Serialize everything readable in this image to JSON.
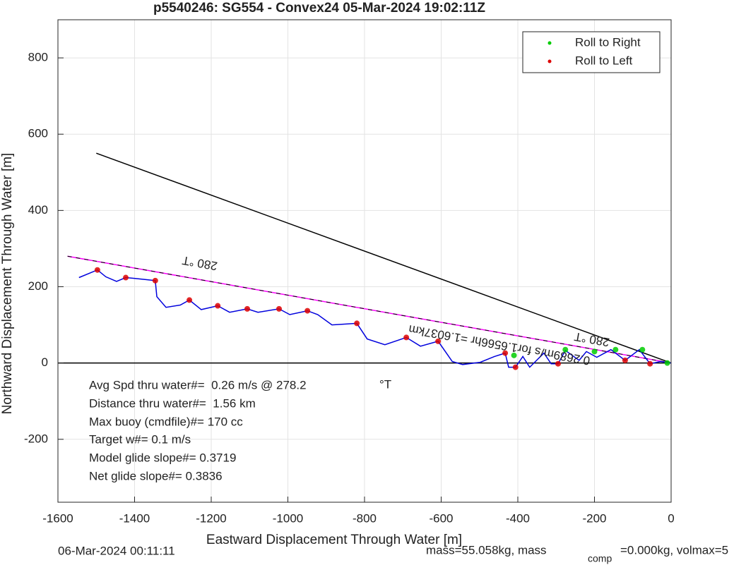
{
  "chart_data": {
    "type": "line",
    "title": "p5540246: SG554 - Convex24 05-Mar-2024 19:02:11Z",
    "xlabel": "Eastward Displacement Through Water [m]",
    "ylabel": "Northward Displacement Through Water [m]",
    "xlim": [
      -1600,
      0
    ],
    "ylim": [
      -365,
      900
    ],
    "xticks": [
      -1600,
      -1400,
      -1200,
      -1000,
      -800,
      -600,
      -400,
      -200,
      0
    ],
    "yticks": [
      -200,
      0,
      200,
      400,
      600,
      800
    ],
    "grid": true,
    "legend": "upper right",
    "series": [
      {
        "name": "Roll to Right",
        "color": "#00cc00",
        "x": [
          -410,
          -276,
          -200,
          -145,
          -75,
          -10
        ],
        "values": [
          20,
          35,
          30,
          35,
          35,
          0
        ]
      },
      {
        "name": "Roll to Left",
        "color": "#dd0000",
        "x": [
          -1497,
          -1423,
          -1346,
          -1257,
          -1183,
          -1106,
          -1023,
          -949,
          -820,
          -691,
          -608,
          -433,
          -406,
          -295,
          -120,
          -55
        ],
        "values": [
          244,
          224,
          216,
          165,
          150,
          142,
          142,
          137,
          104,
          67,
          57,
          26,
          -11,
          -2,
          7,
          -2
        ]
      }
    ],
    "lines": [
      {
        "color": "#000000",
        "x": [
          -1600,
          0
        ],
        "values": [
          0,
          0
        ]
      },
      {
        "color": "#000000",
        "x": [
          -1500,
          0
        ],
        "values": [
          550,
          0
        ]
      },
      {
        "color": "#ff00ff",
        "x": [
          -1575,
          0
        ],
        "values": [
          280,
          0
        ]
      },
      {
        "color": "#0000dd",
        "x": [
          -1545,
          -1497,
          -1475,
          -1447,
          -1423,
          -1401,
          -1364,
          -1346,
          -1342,
          -1318,
          -1281,
          -1257,
          -1226,
          -1183,
          -1152,
          -1106,
          -1078,
          -1023,
          -995,
          -949,
          -922,
          -885,
          -820,
          -793,
          -747,
          -691,
          -654,
          -608,
          -571,
          -544,
          -498,
          -461,
          -433,
          -424,
          -406,
          -387,
          -369,
          -332,
          -313,
          -295,
          -276,
          -240,
          -221,
          -194,
          -157,
          -120,
          -83,
          -55,
          -28,
          0
        ],
        "values": [
          224,
          244,
          226,
          214,
          224,
          222,
          218,
          216,
          174,
          146,
          152,
          165,
          140,
          150,
          133,
          142,
          133,
          142,
          127,
          137,
          127,
          100,
          104,
          63,
          48,
          67,
          44,
          57,
          4,
          -4,
          2,
          17,
          26,
          -11,
          -11,
          17,
          -11,
          26,
          -2,
          -2,
          33,
          7,
          30,
          15,
          35,
          7,
          35,
          -2,
          4,
          0
        ]
      }
    ],
    "annotations": [
      "280 °T",
      "280 °T",
      "0.2689m/s for1.6566hr =1.6037km",
      "Avg Spd thru water#=  0.26 m/s @ 278.2",
      "°T",
      "Distance thru water#=  1.56 km",
      "Max buoy (cmdfile)#= 170 cc",
      "Target w#= 0.1 m/s",
      "Model glide slope#= 0.3719",
      "Net glide slope#= 0.3836"
    ]
  },
  "footer": [
    "06-Mar-2024 00:11:11",
    "mass=55.058kg, mass",
    "comp",
    "=0.000kg, volmax=5"
  ]
}
